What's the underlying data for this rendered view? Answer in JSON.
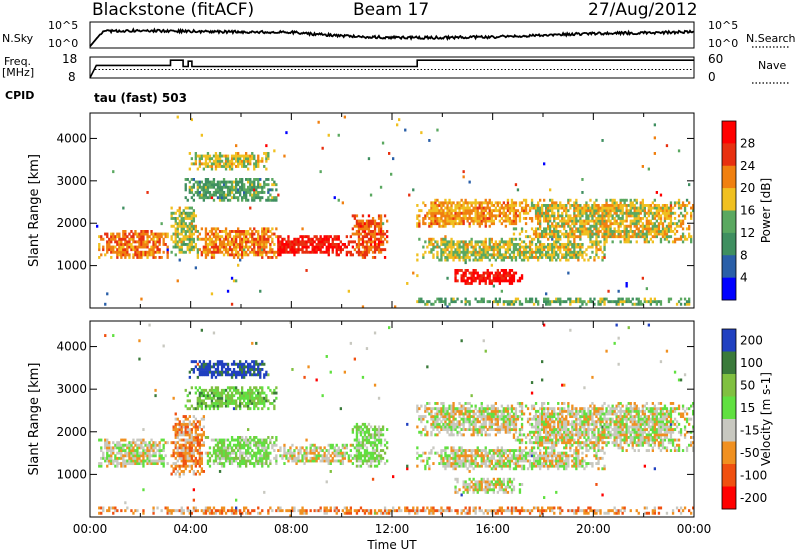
{
  "header": {
    "station": "Blackstone (fitACF)",
    "beam": "Beam 17",
    "date": "27/Aug/2012"
  },
  "labels": {
    "nsky": "N.Sky",
    "nsearch": "N.Search",
    "freq_line1": "Freq.",
    "freq_line2": "[MHz]",
    "nave": "Nave",
    "cpid": "CPID",
    "cpid_value": "tau (fast) 503"
  },
  "noise_axis": {
    "left_top": "10^5",
    "left_bottom": "10^0",
    "right_top": "10^5",
    "right_bottom": "10^0"
  },
  "freq_axis": {
    "left_top": "18",
    "left_bottom": "8",
    "right_top": "60",
    "right_bottom": "0"
  },
  "colors": {
    "power_scale": [
      "#0000ff",
      "#2a5fa8",
      "#3f8f60",
      "#5aa860",
      "#f0c020",
      "#f08010",
      "#e83010",
      "#ff0000"
    ],
    "velocity_scale": [
      "#2040c0",
      "#3a7a3a",
      "#80c040",
      "#60e040",
      "#c8c8c0",
      "#f09020",
      "#f05010",
      "#ff0000"
    ]
  },
  "chart_data": [
    {
      "type": "line",
      "name": "noise",
      "ylim_log10": [
        0,
        5
      ],
      "series": [
        {
          "name": "N.Sky",
          "x_hours": [
            0,
            0.5,
            2,
            4,
            6,
            8,
            10,
            12,
            14,
            16,
            18,
            20,
            22,
            24
          ],
          "log10_values": [
            0.3,
            3.2,
            3.4,
            3.2,
            3.1,
            3.0,
            2.3,
            2.0,
            2.0,
            2.1,
            2.5,
            2.8,
            2.9,
            3.1
          ]
        },
        {
          "name": "N.Search"
        }
      ]
    },
    {
      "type": "line",
      "name": "frequency-and-nave",
      "series": [
        {
          "name": "Freq.",
          "steps": [
            [
              0,
              0.3
            ],
            [
              0.25,
              12
            ],
            [
              3.2,
              12
            ],
            [
              3.2,
              17
            ],
            [
              3.7,
              17
            ],
            [
              3.7,
              11
            ],
            [
              3.9,
              11
            ],
            [
              3.9,
              16
            ],
            [
              4.05,
              16
            ],
            [
              4.05,
              11
            ],
            [
              13,
              11
            ],
            [
              13,
              17
            ],
            [
              24,
              17
            ]
          ]
        },
        {
          "name": "Nave",
          "value": 9
        }
      ]
    },
    {
      "type": "heatmap",
      "title": "Power",
      "xlabel": "",
      "ylabel": "Slant Range [km]",
      "colorbar_label": "Power [dB]",
      "colorbar_ticks": [
        4,
        8,
        12,
        16,
        20,
        24,
        28
      ],
      "xlim_hours": [
        0,
        24
      ],
      "ylim_km": [
        0,
        4600
      ],
      "y_ticks": [
        1000,
        2000,
        3000,
        4000
      ],
      "regions": [
        {
          "t": [
            0.3,
            3.1
          ],
          "r": [
            1150,
            1850
          ],
          "level": 5.2
        },
        {
          "t": [
            3.2,
            4.3
          ],
          "r": [
            1300,
            2400
          ],
          "level": 3.5
        },
        {
          "t": [
            4.2,
            7.4
          ],
          "r": [
            1150,
            1900
          ],
          "level": 5.0
        },
        {
          "t": [
            6.6,
            10.4
          ],
          "r": [
            1200,
            1700
          ],
          "level": 6.6
        },
        {
          "t": [
            3.9,
            7.1
          ],
          "r": [
            3250,
            3700
          ],
          "level": 3.7
        },
        {
          "t": [
            3.8,
            7.4
          ],
          "r": [
            2500,
            3050
          ],
          "level": 2.5
        },
        {
          "t": [
            10.4,
            11.8
          ],
          "r": [
            1150,
            2200
          ],
          "level": 5.6
        },
        {
          "t": [
            13.0,
            17.5
          ],
          "r": [
            1900,
            2600
          ],
          "level": 4.6
        },
        {
          "t": [
            16.8,
            24.0
          ],
          "r": [
            1550,
            2600
          ],
          "level": 4.0
        },
        {
          "t": [
            13.0,
            20.5
          ],
          "r": [
            1100,
            1650
          ],
          "level": 3.6
        },
        {
          "t": [
            14.5,
            17.2
          ],
          "r": [
            550,
            900
          ],
          "level": 6.8
        },
        {
          "t": [
            13.0,
            24.0
          ],
          "r": [
            80,
            220
          ],
          "level": 2.8
        }
      ]
    },
    {
      "type": "heatmap",
      "title": "Velocity",
      "xlabel": "Time UT",
      "ylabel": "Slant Range [km]",
      "colorbar_label": "Velocity [m s-1]",
      "colorbar_ticks": [
        200,
        100,
        50,
        15,
        -15,
        -50,
        -100,
        -200
      ],
      "xlim_hours": [
        0,
        24
      ],
      "ylim_km": [
        0,
        4600
      ],
      "x_ticks": [
        "00:00",
        "04:00",
        "08:00",
        "12:00",
        "16:00",
        "20:00",
        "00:00"
      ],
      "y_ticks": [
        1000,
        2000,
        3000,
        4000
      ],
      "regions": [
        {
          "t": [
            0.3,
            3.1
          ],
          "r": [
            1150,
            1850
          ],
          "level": 4
        },
        {
          "t": [
            3.2,
            4.6
          ],
          "r": [
            1000,
            2400
          ],
          "level": 5
        },
        {
          "t": [
            4.6,
            7.4
          ],
          "r": [
            1150,
            1900
          ],
          "level": 3
        },
        {
          "t": [
            7.4,
            10.4
          ],
          "r": [
            1200,
            1700
          ],
          "level": 4
        },
        {
          "t": [
            3.9,
            7.1
          ],
          "r": [
            3250,
            3700
          ],
          "level": 0
        },
        {
          "t": [
            3.8,
            7.4
          ],
          "r": [
            2500,
            3050
          ],
          "level": 2.3
        },
        {
          "t": [
            10.4,
            11.8
          ],
          "r": [
            1150,
            2200
          ],
          "level": 3
        },
        {
          "t": [
            13.0,
            17.5
          ],
          "r": [
            1900,
            2700
          ],
          "level": 4
        },
        {
          "t": [
            16.8,
            24.0
          ],
          "r": [
            1550,
            2700
          ],
          "level": 4
        },
        {
          "t": [
            13.0,
            20.5
          ],
          "r": [
            1100,
            1650
          ],
          "level": 4
        },
        {
          "t": [
            14.5,
            17.2
          ],
          "r": [
            550,
            900
          ],
          "level": 4
        },
        {
          "t": [
            0.3,
            24.0
          ],
          "r": [
            80,
            220
          ],
          "level": 5
        }
      ]
    }
  ]
}
